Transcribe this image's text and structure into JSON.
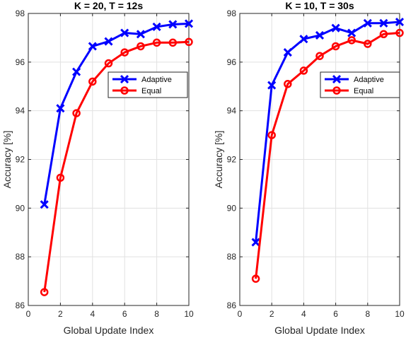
{
  "chart_data": [
    {
      "type": "line",
      "title": "K = 20, T = 12s",
      "xlabel": "Global Update Index",
      "ylabel": "Accuracy [%]",
      "xlim": [
        0,
        10
      ],
      "ylim": [
        86,
        98
      ],
      "xticks": [
        "0",
        "2",
        "4",
        "6",
        "8",
        "10"
      ],
      "yticks": [
        "86",
        "88",
        "90",
        "92",
        "94",
        "96",
        "98"
      ],
      "grid": true,
      "legend_position": "right",
      "x": [
        1,
        2,
        3,
        4,
        5,
        6,
        7,
        8,
        9,
        10
      ],
      "series": [
        {
          "name": "Adaptive",
          "color": "#0000ff",
          "marker": "x",
          "values": [
            90.15,
            94.1,
            95.6,
            96.65,
            96.85,
            97.2,
            97.15,
            97.45,
            97.55,
            97.58
          ]
        },
        {
          "name": "Equal",
          "color": "#ff0000",
          "marker": "o",
          "values": [
            86.55,
            91.25,
            93.9,
            95.2,
            95.95,
            96.4,
            96.65,
            96.8,
            96.8,
            96.83
          ]
        }
      ]
    },
    {
      "type": "line",
      "title": "K = 10, T = 30s",
      "xlabel": "Global Update Index",
      "ylabel": "Accuracy [%]",
      "xlim": [
        0,
        10
      ],
      "ylim": [
        86,
        98
      ],
      "xticks": [
        "0",
        "2",
        "4",
        "6",
        "8",
        "10"
      ],
      "yticks": [
        "86",
        "88",
        "90",
        "92",
        "94",
        "96",
        "98"
      ],
      "grid": true,
      "legend_position": "right",
      "x": [
        1,
        2,
        3,
        4,
        5,
        6,
        7,
        8,
        9,
        10
      ],
      "series": [
        {
          "name": "Adaptive",
          "color": "#0000ff",
          "marker": "x",
          "values": [
            88.6,
            95.05,
            96.4,
            96.95,
            97.1,
            97.4,
            97.2,
            97.6,
            97.6,
            97.65
          ]
        },
        {
          "name": "Equal",
          "color": "#ff0000",
          "marker": "o",
          "values": [
            87.1,
            93.0,
            95.1,
            95.65,
            96.25,
            96.65,
            96.9,
            96.75,
            97.15,
            97.2
          ]
        }
      ]
    }
  ]
}
